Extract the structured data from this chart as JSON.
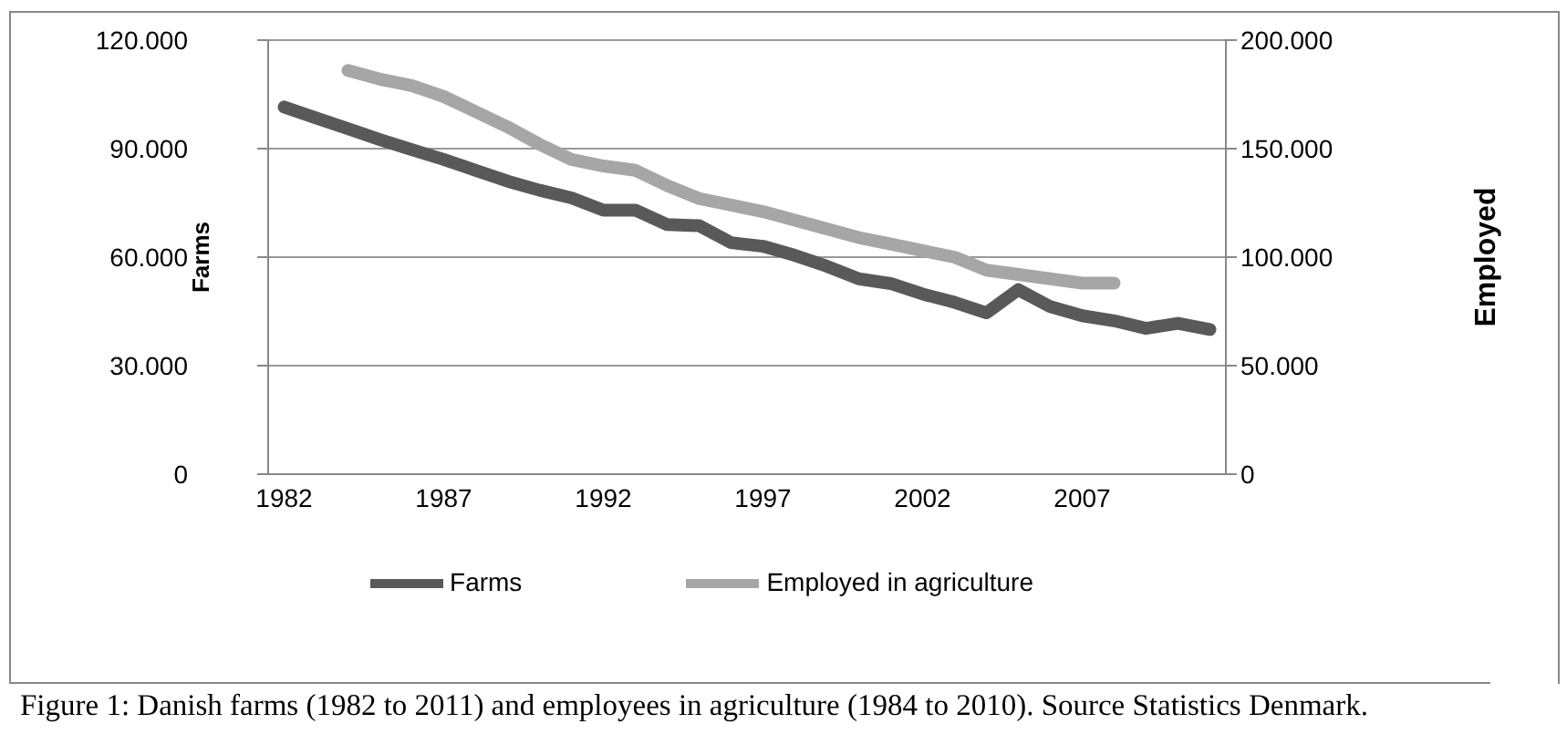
{
  "chart_data": {
    "type": "line",
    "categories": [
      "1982",
      null,
      null,
      null,
      null,
      "1987",
      null,
      null,
      null,
      null,
      "1992",
      null,
      null,
      null,
      null,
      "1997",
      null,
      null,
      null,
      null,
      "2002",
      null,
      null,
      null,
      null,
      "2007",
      null,
      null,
      null,
      null
    ],
    "series": [
      {
        "name": "Farms",
        "color": "#595959",
        "values": [
          101500,
          98500,
          95500,
          92500,
          89700,
          87000,
          84000,
          81000,
          78500,
          76400,
          73000,
          73000,
          69000,
          68700,
          64000,
          63000,
          60500,
          57500,
          54000,
          52700,
          49800,
          47500,
          44600,
          51000,
          46300,
          43800,
          42400,
          40300,
          41700,
          40000
        ]
      },
      {
        "name": "Employed in agriculture",
        "color": "#a6a6a6",
        "axis": "y2",
        "values": [
          null,
          null,
          186000,
          182000,
          179000,
          174000,
          167000,
          160000,
          152000,
          145000,
          142000,
          140000,
          133000,
          127000,
          124000,
          121000,
          117000,
          113000,
          109000,
          106000,
          103000,
          100000,
          94000,
          92000,
          90000,
          88000,
          88000,
          null,
          null,
          null
        ]
      }
    ],
    "ylabel": "Farms",
    "y2label": "Employed",
    "ylim": [
      0,
      120000
    ],
    "yticks": [
      {
        "value": 0,
        "label": "0"
      },
      {
        "value": 30000,
        "label": "30.000"
      },
      {
        "value": 60000,
        "label": "60.000"
      },
      {
        "value": 90000,
        "label": "90.000"
      },
      {
        "value": 120000,
        "label": "120.000"
      }
    ],
    "y2lim": [
      0,
      200000
    ],
    "y2ticks": [
      {
        "value": 0,
        "label": "0"
      },
      {
        "value": 50000,
        "label": "50.000"
      },
      {
        "value": 100000,
        "label": "100.000"
      },
      {
        "value": 150000,
        "label": "150.000"
      },
      {
        "value": 200000,
        "label": "200.000"
      }
    ],
    "grid": "y",
    "legend": "bottom",
    "marker": "none",
    "line_style": "solid",
    "annotations": [
      "Figure 1: Danish farms (1982 to 2011) and employees in agriculture (1984 to 2010). Source Statistics Denmark."
    ]
  }
}
